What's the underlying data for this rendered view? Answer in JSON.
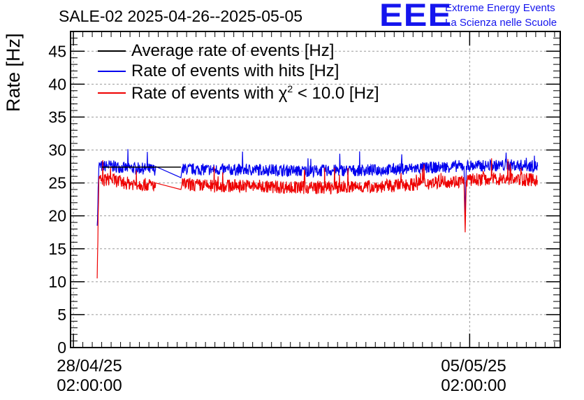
{
  "chart_data": {
    "type": "line",
    "title": "SALE-02 2025-04-26--2025-05-05",
    "ylabel": "Rate [Hz]",
    "xlabel": "",
    "ylim": [
      0,
      48
    ],
    "xlim_days": [
      -0.05,
      8.6
    ],
    "grid": true,
    "legend_position": "top-left",
    "yticks": [
      0,
      5,
      10,
      15,
      20,
      25,
      30,
      35,
      40,
      45
    ],
    "xticks": [
      {
        "label_date": "28/04/25",
        "label_time": "02:00:00",
        "day": 0
      },
      {
        "label_date": "05/05/25",
        "label_time": "02:00:00",
        "day": 7
      }
    ],
    "series": [
      {
        "name": "Average rate of events [Hz]",
        "color": "#000000",
        "points": [
          [
            0.5,
            27.4
          ],
          [
            1.4,
            27.4
          ],
          [
            1.9,
            27.4
          ]
        ]
      },
      {
        "name": "Rate of events with hits [Hz]",
        "color": "#0000ee",
        "points": [
          [
            0.42,
            18.5
          ],
          [
            0.45,
            27.5
          ],
          [
            0.65,
            27.6
          ],
          [
            0.9,
            27.3
          ],
          [
            1.2,
            27.2
          ],
          [
            1.45,
            27.0
          ],
          [
            1.45,
            27.5
          ],
          [
            1.9,
            25.8
          ],
          [
            1.92,
            27.1
          ],
          [
            2.5,
            27.0
          ],
          [
            3.0,
            27.0
          ],
          [
            3.5,
            27.0
          ],
          [
            4.0,
            26.8
          ],
          [
            4.5,
            26.9
          ],
          [
            5.0,
            26.9
          ],
          [
            5.5,
            27.0
          ],
          [
            6.0,
            27.2
          ],
          [
            6.5,
            27.4
          ],
          [
            6.9,
            27.6
          ],
          [
            6.92,
            20.0
          ],
          [
            6.94,
            27.6
          ],
          [
            7.3,
            27.6
          ],
          [
            7.8,
            27.7
          ],
          [
            8.2,
            27.5
          ]
        ]
      },
      {
        "name": "Rate of events with χ² < 10.0 [Hz]",
        "color": "#ee0000",
        "points": [
          [
            0.42,
            10.5
          ],
          [
            0.45,
            25.3
          ],
          [
            0.65,
            25.6
          ],
          [
            0.9,
            25.0
          ],
          [
            1.2,
            24.8
          ],
          [
            1.45,
            24.6
          ],
          [
            1.45,
            25.0
          ],
          [
            1.9,
            24.0
          ],
          [
            1.92,
            24.8
          ],
          [
            2.5,
            24.5
          ],
          [
            3.0,
            24.6
          ],
          [
            3.5,
            24.4
          ],
          [
            4.0,
            24.3
          ],
          [
            4.5,
            24.3
          ],
          [
            5.0,
            24.4
          ],
          [
            5.5,
            24.5
          ],
          [
            6.0,
            24.8
          ],
          [
            6.5,
            25.2
          ],
          [
            6.9,
            25.3
          ],
          [
            6.92,
            17.5
          ],
          [
            6.94,
            25.4
          ],
          [
            7.3,
            25.6
          ],
          [
            7.8,
            25.6
          ],
          [
            8.2,
            25.4
          ]
        ]
      }
    ]
  },
  "legend": {
    "black": "Average rate of events [Hz]",
    "blue": "Rate of events with hits [Hz]",
    "red_pre": "Rate of events with χ",
    "red_sup": "2",
    "red_post": " < 10.0 [Hz]"
  },
  "logo": {
    "mark": "EEE",
    "line1": "Extreme Energy Events",
    "line2": "La Scienza nelle Scuole",
    "color": "#1515ee"
  }
}
